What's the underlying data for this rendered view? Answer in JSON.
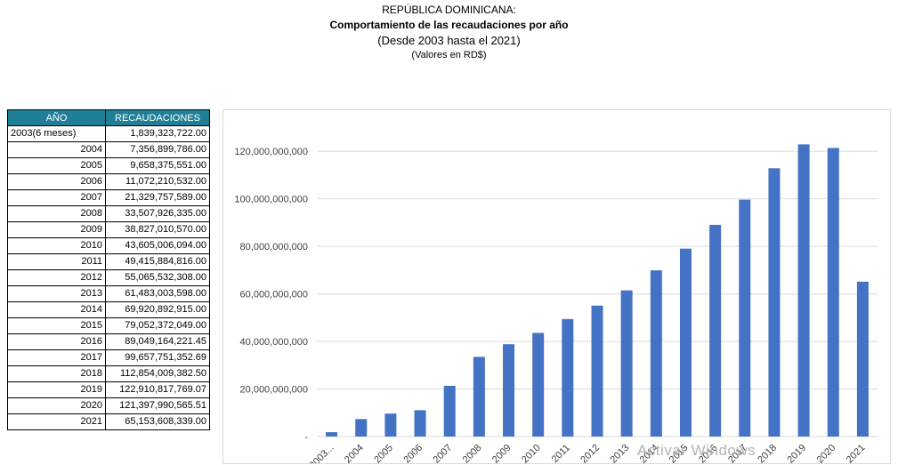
{
  "header": {
    "line1": "REPÚBLICA DOMINICANA:",
    "line2": "Comportamiento de las recaudaciones por año",
    "line3": "(Desde 2003 hasta el 2021)",
    "line4": "(Valores en RD$)"
  },
  "table": {
    "headers": [
      "AÑO",
      "RECAUDACIONES"
    ],
    "rows": [
      [
        "2003(6 meses)",
        "1,839,323,722.00"
      ],
      [
        "2004",
        "7,356,899,786.00"
      ],
      [
        "2005",
        "9,658,375,551.00"
      ],
      [
        "2006",
        "11,072,210,532.00"
      ],
      [
        "2007",
        "21,329,757,589.00"
      ],
      [
        "2008",
        "33,507,926,335.00"
      ],
      [
        "2009",
        "38,827,010,570.00"
      ],
      [
        "2010",
        "43,605,006,094.00"
      ],
      [
        "2011",
        "49,415,884,816.00"
      ],
      [
        "2012",
        "55,065,532,308.00"
      ],
      [
        "2013",
        "61,483,003,598.00"
      ],
      [
        "2014",
        "69,920,892,915.00"
      ],
      [
        "2015",
        "79,052,372,049.00"
      ],
      [
        "2016",
        "89,049,164,221.45"
      ],
      [
        "2017",
        "99,657,751,352.69"
      ],
      [
        "2018",
        "112,854,009,382.50"
      ],
      [
        "2019",
        "122,910,817,769.07"
      ],
      [
        "2020",
        "121,397,990,565.51"
      ],
      [
        "2021",
        "65,153,608,339.00"
      ]
    ]
  },
  "chart_data": {
    "type": "bar",
    "categories": [
      "2003...",
      "2004",
      "2005",
      "2006",
      "2007",
      "2008",
      "2009",
      "2010",
      "2011",
      "2012",
      "2013",
      "2014",
      "2015",
      "2016",
      "2017",
      "2018",
      "2019",
      "2020",
      "2021"
    ],
    "values": [
      1839323722.0,
      7356899786.0,
      9658375551.0,
      11072210532.0,
      21329757589.0,
      33507926335.0,
      38827010570.0,
      43605006094.0,
      49415884816.0,
      55065532308.0,
      61483003598.0,
      69920892915.0,
      79052372049.0,
      89049164221.45,
      99657751352.69,
      112854009382.5,
      122910817769.07,
      121397990565.51,
      65153608339.0
    ],
    "y_ticks": [
      0,
      20000000000,
      40000000000,
      60000000000,
      80000000000,
      100000000000,
      120000000000
    ],
    "y_tick_labels": [
      "-",
      "20,000,000,000",
      "40,000,000,000",
      "60,000,000,000",
      "80,000,000,000",
      "100,000,000,000",
      "120,000,000,000"
    ],
    "ylim": [
      0,
      120000000000
    ],
    "grid": true,
    "legend": "none",
    "bar_color": "#4472c4",
    "grid_color": "#d9d9d9",
    "title": "",
    "xlabel": "",
    "ylabel": ""
  },
  "watermark": "Activar Windows",
  "colors": {
    "header_bg": "#1f7f96",
    "bar": "#4472c4"
  }
}
